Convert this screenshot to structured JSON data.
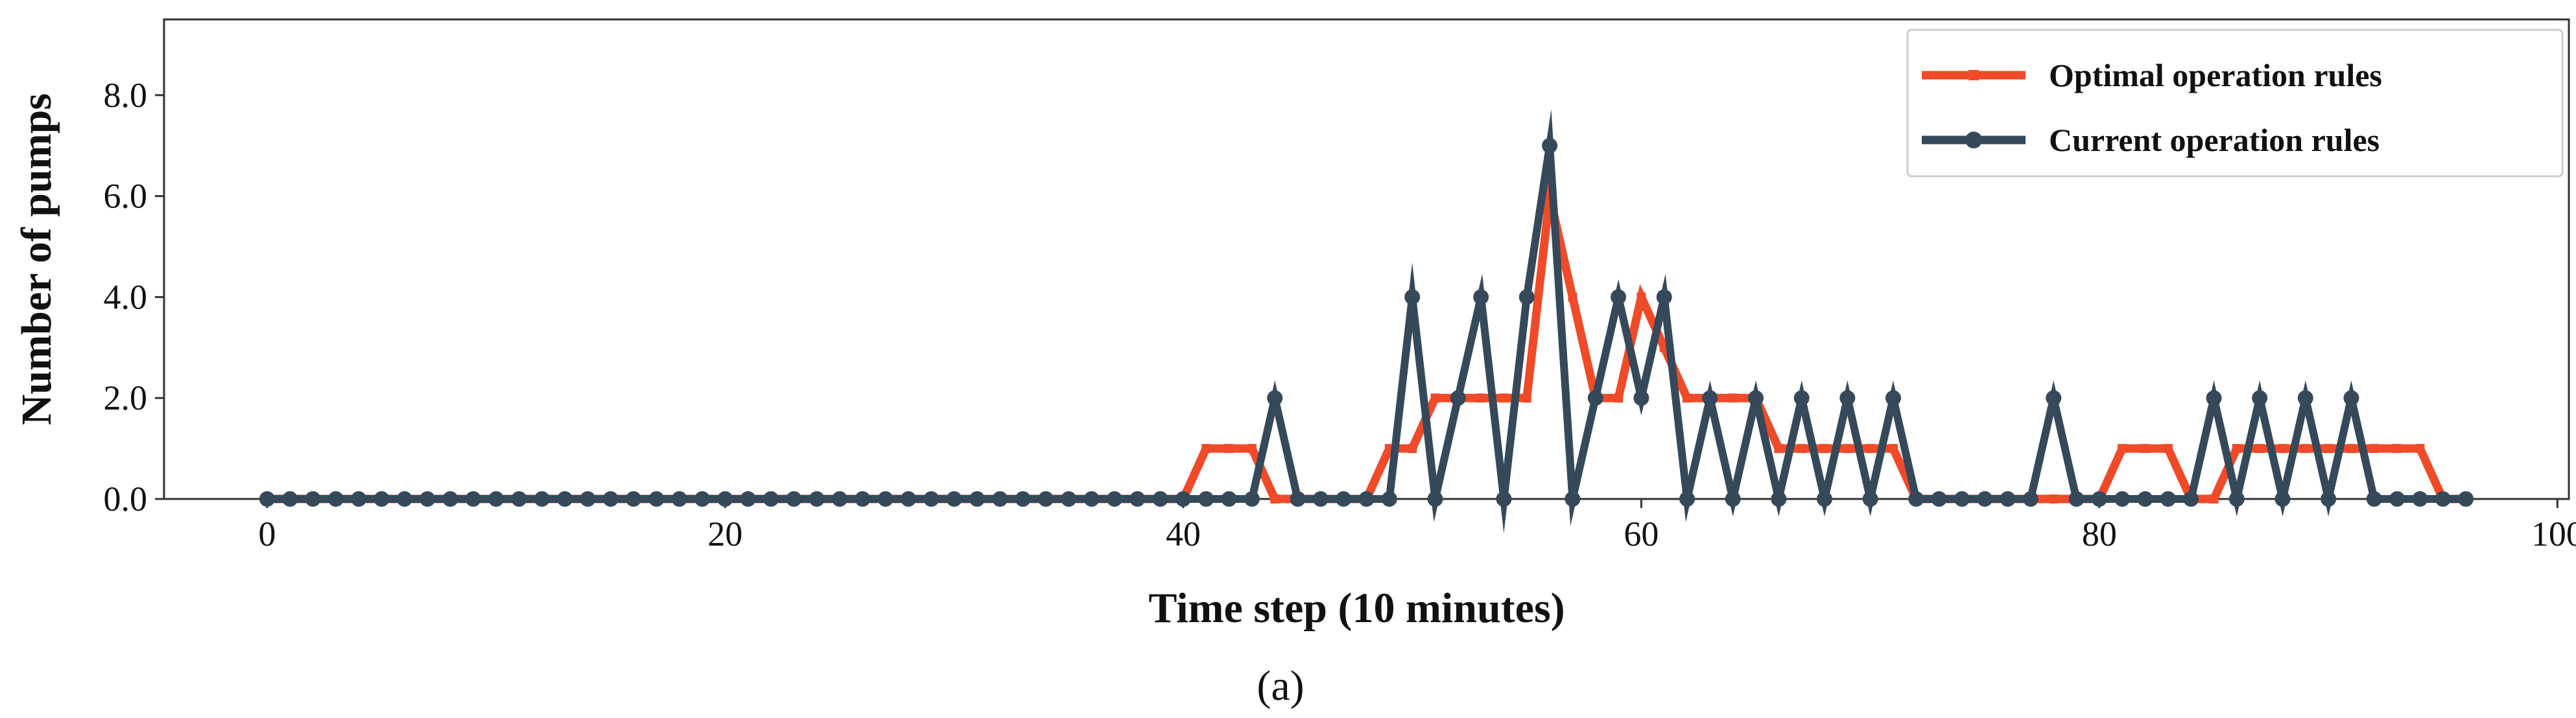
{
  "panel_label": "(a)",
  "colors": {
    "optimal": "#f04a28",
    "current": "#35495a",
    "axis": "#333333"
  },
  "chart_data": {
    "type": "line",
    "title": "",
    "xlabel": "Time step (10 minutes)",
    "ylabel": "Number of pumps",
    "xlim": [
      -4.5,
      100.5
    ],
    "ylim": [
      0,
      9.5
    ],
    "xticks": [
      0,
      20,
      40,
      60,
      80,
      100
    ],
    "xtick_labels": [
      "0",
      "20",
      "40",
      "60",
      "80",
      "100"
    ],
    "yticks": [
      0,
      2,
      4,
      6,
      8
    ],
    "ytick_labels": [
      "0.0",
      "2.0",
      "4.0",
      "6.0",
      "8.0"
    ],
    "grid": false,
    "legend_position": "top-right",
    "series": [
      {
        "name": "Optimal operation rules",
        "marker": "square",
        "color": "#f04a28",
        "x": [
          0,
          1,
          2,
          3,
          4,
          5,
          6,
          7,
          8,
          9,
          10,
          11,
          12,
          13,
          14,
          15,
          16,
          17,
          18,
          19,
          20,
          21,
          22,
          23,
          24,
          25,
          26,
          27,
          28,
          29,
          30,
          31,
          32,
          33,
          34,
          35,
          36,
          37,
          38,
          39,
          40,
          41,
          42,
          43,
          44,
          45,
          46,
          47,
          48,
          49,
          50,
          51,
          52,
          53,
          54,
          55,
          56,
          57,
          58,
          59,
          60,
          61,
          62,
          63,
          64,
          65,
          66,
          67,
          68,
          69,
          70,
          71,
          72,
          73,
          74,
          75,
          76,
          77,
          78,
          79,
          80,
          81,
          82,
          83,
          84,
          85,
          86,
          87,
          88,
          89,
          90,
          91,
          92,
          93,
          94,
          95,
          96
        ],
        "values": [
          0,
          0,
          0,
          0,
          0,
          0,
          0,
          0,
          0,
          0,
          0,
          0,
          0,
          0,
          0,
          0,
          0,
          0,
          0,
          0,
          0,
          0,
          0,
          0,
          0,
          0,
          0,
          0,
          0,
          0,
          0,
          0,
          0,
          0,
          0,
          0,
          0,
          0,
          0,
          0,
          0,
          1,
          1,
          1,
          0,
          0,
          0,
          0,
          0,
          1,
          1,
          2,
          2,
          2,
          2,
          2,
          6,
          4,
          2,
          2,
          4,
          3,
          2,
          2,
          2,
          2,
          1,
          1,
          1,
          1,
          1,
          1,
          0,
          0,
          0,
          0,
          0,
          0,
          0,
          0,
          0,
          1,
          1,
          1,
          0,
          0,
          1,
          1,
          1,
          1,
          1,
          1,
          1,
          1,
          1,
          0,
          0
        ]
      },
      {
        "name": "Current operation rules",
        "marker": "circle",
        "color": "#35495a",
        "x": [
          0,
          1,
          2,
          3,
          4,
          5,
          6,
          7,
          8,
          9,
          10,
          11,
          12,
          13,
          14,
          15,
          16,
          17,
          18,
          19,
          20,
          21,
          22,
          23,
          24,
          25,
          26,
          27,
          28,
          29,
          30,
          31,
          32,
          33,
          34,
          35,
          36,
          37,
          38,
          39,
          40,
          41,
          42,
          43,
          44,
          45,
          46,
          47,
          48,
          49,
          50,
          51,
          52,
          53,
          54,
          55,
          56,
          57,
          58,
          59,
          60,
          61,
          62,
          63,
          64,
          65,
          66,
          67,
          68,
          69,
          70,
          71,
          72,
          73,
          74,
          75,
          76,
          77,
          78,
          79,
          80,
          81,
          82,
          83,
          84,
          85,
          86,
          87,
          88,
          89,
          90,
          91,
          92,
          93,
          94,
          95,
          96
        ],
        "values": [
          0,
          0,
          0,
          0,
          0,
          0,
          0,
          0,
          0,
          0,
          0,
          0,
          0,
          0,
          0,
          0,
          0,
          0,
          0,
          0,
          0,
          0,
          0,
          0,
          0,
          0,
          0,
          0,
          0,
          0,
          0,
          0,
          0,
          0,
          0,
          0,
          0,
          0,
          0,
          0,
          0,
          0,
          0,
          0,
          2,
          0,
          0,
          0,
          0,
          0,
          4,
          0,
          2,
          4,
          0,
          4,
          7,
          0,
          2,
          4,
          2,
          4,
          0,
          2,
          0,
          2,
          0,
          2,
          0,
          2,
          0,
          2,
          0,
          0,
          0,
          0,
          0,
          0,
          2,
          0,
          0,
          0,
          0,
          0,
          0,
          2,
          0,
          2,
          0,
          2,
          0,
          2,
          0,
          0,
          0,
          0,
          0
        ]
      }
    ]
  }
}
